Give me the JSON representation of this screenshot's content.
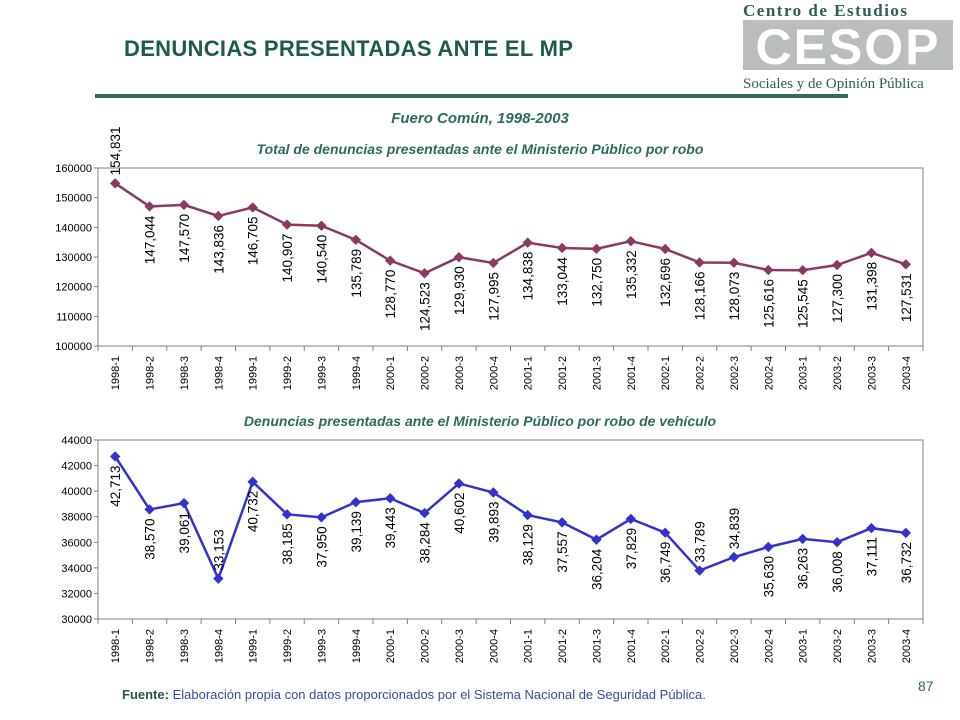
{
  "header": {
    "title": "DENUNCIAS PRESENTADAS ANTE EL MP",
    "logo": {
      "top_text": "Centro de Estudios",
      "letters": "CESOP",
      "bottom_text": "Sociales y de Opinión Pública"
    }
  },
  "subtitle": "Fuero Común, 1998-2003",
  "footer": {
    "label": "Fuente:",
    "text": " Elaboración propia con datos proporcionados por el Sistema Nacional de Seguridad Pública."
  },
  "page_number": "87",
  "colors": {
    "theme": "#2e6a5d",
    "series1": "#8b3a62",
    "series2": "#3333cc"
  },
  "chart_data": [
    {
      "type": "line",
      "title": "Total de denuncias presentadas ante el Ministerio Público  por robo",
      "categories": [
        "1998-1",
        "1998-2",
        "1998-3",
        "1998-4",
        "1999-1",
        "1999-2",
        "1999-3",
        "1999-4",
        "2000-1",
        "2000-2",
        "2000-3",
        "2000-4",
        "2001-1",
        "2001-2",
        "2001-3",
        "2001-4",
        "2002-1",
        "2002-2",
        "2002-3",
        "2002-4",
        "2003-1",
        "2003-2",
        "2003-3",
        "2003-4"
      ],
      "values": [
        154831,
        147044,
        147570,
        143836,
        146705,
        140907,
        140540,
        135789,
        128770,
        124523,
        129930,
        127995,
        134838,
        133044,
        132750,
        135332,
        132696,
        128166,
        128073,
        125616,
        125545,
        127300,
        131398,
        127531
      ],
      "data_labels": [
        "154,831",
        "147,044",
        "147,570",
        "143,836",
        "146,705",
        "140,907",
        "140,540",
        "135,789",
        "128,770",
        "124,523",
        "129,930",
        "127,995",
        "134,838",
        "133,044",
        "132,750",
        "135,332",
        "132,696",
        "128,166",
        "128,073",
        "125,616",
        "125,545",
        "127,300",
        "131,398",
        "127,531"
      ],
      "label_pos": [
        "above",
        "below",
        "below",
        "below",
        "below",
        "below",
        "below",
        "below",
        "below",
        "below",
        "below",
        "below",
        "below",
        "below",
        "below",
        "below",
        "below",
        "below",
        "below",
        "below",
        "below",
        "below",
        "below",
        "below"
      ],
      "ylim": [
        100000,
        160000
      ],
      "yticks": [
        "100000",
        "110000",
        "120000",
        "130000",
        "140000",
        "150000",
        "160000"
      ],
      "grid": false,
      "color": "#8b3a62"
    },
    {
      "type": "line",
      "title": "Denuncias presentadas ante el Ministerio Público por robo de vehículo",
      "categories": [
        "1998-1",
        "1998-2",
        "1998-3",
        "1998-4",
        "1999-1",
        "1999-2",
        "1999-3",
        "1999-4",
        "2000-1",
        "2000-2",
        "2000-3",
        "2000-4",
        "2001-1",
        "2001-2",
        "2001-3",
        "2001-4",
        "2002-1",
        "2002-2",
        "2002-3",
        "2002-4",
        "2003-1",
        "2003-2",
        "2003-3",
        "2003-4"
      ],
      "values": [
        42713,
        38570,
        39061,
        33153,
        40732,
        38185,
        37950,
        39139,
        39443,
        38284,
        40602,
        39893,
        38129,
        37557,
        36204,
        37829,
        36749,
        33789,
        34839,
        35630,
        36263,
        36008,
        37111,
        36732
      ],
      "data_labels": [
        "42,713",
        "38,570",
        "39,061",
        "33,153",
        "40,732",
        "38,185",
        "37,950",
        "39,139",
        "39,443",
        "38,284",
        "40,602",
        "39,893",
        "38,129",
        "37,557",
        "36,204",
        "37,829",
        "36,749",
        "33,789",
        "34,839",
        "35,630",
        "36,263",
        "36,008",
        "37,111",
        "36,732"
      ],
      "label_pos": [
        "below",
        "below",
        "below",
        "above",
        "below",
        "below",
        "below",
        "below",
        "below",
        "below",
        "below",
        "below",
        "below",
        "below",
        "below",
        "below",
        "below",
        "above",
        "above",
        "below",
        "below",
        "below",
        "below",
        "below"
      ],
      "ylim": [
        30000,
        44000
      ],
      "yticks": [
        "30000",
        "32000",
        "34000",
        "36000",
        "38000",
        "40000",
        "42000",
        "44000"
      ],
      "grid": false,
      "color": "#3333cc"
    }
  ]
}
